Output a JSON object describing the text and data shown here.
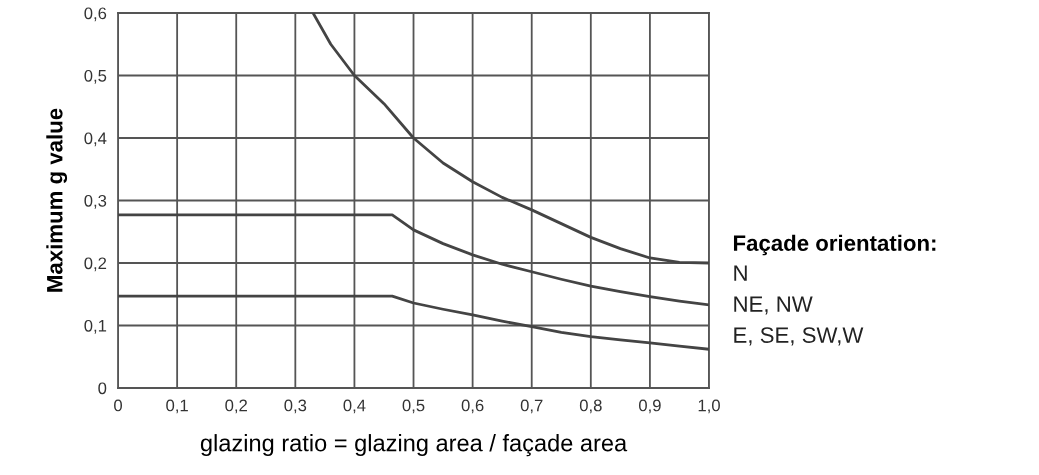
{
  "chart_data": {
    "type": "line",
    "xlabel": "glazing ratio = glazing area / façade area",
    "ylabel": "Maximum g value",
    "legend_title": "Façade orientation:",
    "series": [
      {
        "name": "N",
        "color": "#444444",
        "x": [
          0.33,
          0.36,
          0.4,
          0.45,
          0.5,
          0.55,
          0.6,
          0.65,
          0.7,
          0.75,
          0.8,
          0.85,
          0.9,
          0.95,
          1.0
        ],
        "values": [
          0.6,
          0.55,
          0.5,
          0.455,
          0.4,
          0.36,
          0.33,
          0.305,
          0.285,
          0.263,
          0.241,
          0.223,
          0.208,
          0.201,
          0.2
        ]
      },
      {
        "name": "NE, NW",
        "color": "#444444",
        "x": [
          0,
          0.464,
          0.5,
          0.55,
          0.6,
          0.65,
          0.7,
          0.75,
          0.8,
          0.85,
          0.9,
          0.95,
          1.0
        ],
        "values": [
          0.277,
          0.277,
          0.253,
          0.231,
          0.213,
          0.198,
          0.186,
          0.174,
          0.163,
          0.154,
          0.146,
          0.139,
          0.133
        ]
      },
      {
        "name": "E, SE, SW,W",
        "color": "#444444",
        "x": [
          0,
          0.464,
          0.5,
          0.55,
          0.6,
          0.65,
          0.7,
          0.75,
          0.8,
          0.85,
          0.9,
          0.95,
          1.0
        ],
        "values": [
          0.147,
          0.147,
          0.136,
          0.126,
          0.117,
          0.107,
          0.098,
          0.089,
          0.082,
          0.077,
          0.072,
          0.067,
          0.062
        ]
      }
    ],
    "xlim": [
      0,
      1.0
    ],
    "ylim": [
      0,
      0.6
    ],
    "xticks": [
      0,
      {
        "value": 0.1,
        "label": "0,1"
      },
      {
        "value": 0.2,
        "label": "0,2"
      },
      {
        "value": 0.3,
        "label": "0,3"
      },
      {
        "value": 0.4,
        "label": "0,4"
      },
      {
        "value": 0.5,
        "label": "0,5"
      },
      {
        "value": 0.6,
        "label": "0,6"
      },
      {
        "value": 0.7,
        "label": "0,7"
      },
      {
        "value": 0.8,
        "label": "0,8"
      },
      {
        "value": 0.9,
        "label": "0,9"
      },
      {
        "value": 1.0,
        "label": "1,0"
      }
    ],
    "yticks": [
      0,
      {
        "value": 0.1,
        "label": "0,1"
      },
      {
        "value": 0.2,
        "label": "0,2"
      },
      {
        "value": 0.3,
        "label": "0,3"
      },
      {
        "value": 0.4,
        "label": "0,4"
      },
      {
        "value": 0.5,
        "label": "0,5"
      },
      {
        "value": 0.6,
        "label": "0,6"
      }
    ],
    "grid": true,
    "legend": "right",
    "marker": "none",
    "line_style": "solid"
  }
}
